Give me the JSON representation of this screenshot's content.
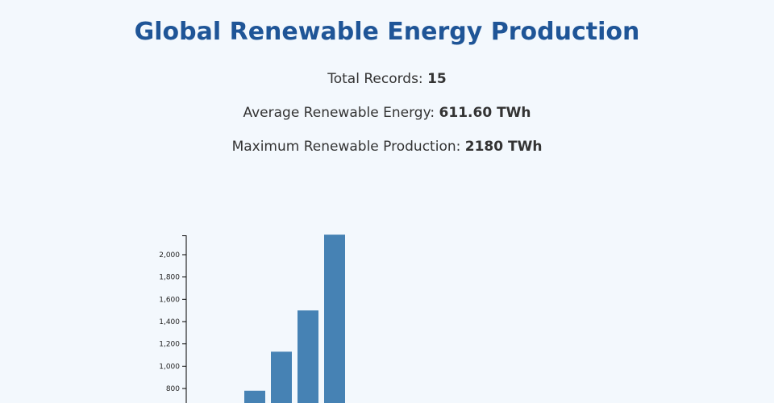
{
  "header": {
    "title": "Global Renewable Energy Production"
  },
  "stats": {
    "total_records_label": "Total Records:",
    "total_records_value": "15",
    "average_label": "Average Renewable Energy:",
    "average_value": "611.60 TWh",
    "maximum_label": "Maximum Renewable Production:",
    "maximum_value": "2180 TWh"
  },
  "chart_data": {
    "type": "bar",
    "title": "",
    "xlabel": "",
    "ylabel": "",
    "bar_color": "#4682b4",
    "values": [
      780,
      1130,
      1500,
      2180
    ],
    "yticks": [
      800,
      1000,
      1200,
      1400,
      1600,
      1800,
      2000
    ],
    "ytick_labels": [
      "800",
      "1,000",
      "1,200",
      "1,400",
      "1,600",
      "1,800",
      "2,000"
    ]
  }
}
